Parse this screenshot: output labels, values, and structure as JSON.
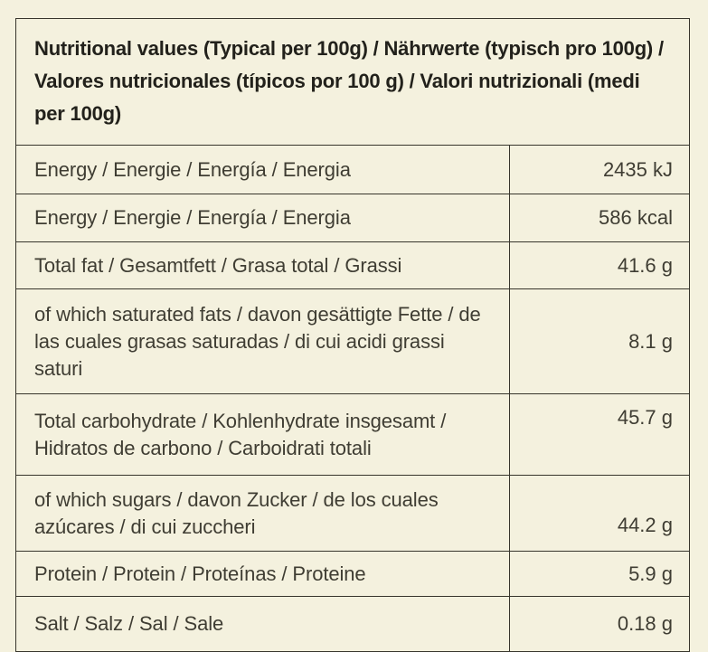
{
  "theme": {
    "background": "#f4f1de",
    "border": "#37352c",
    "text": "#3f3d33",
    "heading_text": "#22211b"
  },
  "table": {
    "header": "Nutritional values (Typical per 100g) / Nährwerte (typisch pro 100g) / Valores nutricionales (típicos por 100 g) / Valori nutrizionali (medi per 100g)",
    "rows": [
      {
        "label": "Energy / Energie / Energía / Energia",
        "value": "2435 kJ"
      },
      {
        "label": "Energy / Energie / Energía / Energia",
        "value": "586 kcal"
      },
      {
        "label": "Total fat / Gesamtfett / Grasa total / Grassi",
        "value": "41.6 g"
      },
      {
        "label": "of which saturated fats / davon gesättigte Fette / de las cuales grasas saturadas / di cui acidi grassi saturi",
        "value": "8.1 g"
      },
      {
        "label": "Total carbohydrate / Kohlenhydrate insgesamt / Hidratos de carbono / Carboidrati totali",
        "value": "45.7 g"
      },
      {
        "label": "of which sugars / davon Zucker / de los cuales azúcares / di cui zuccheri",
        "value": "44.2 g"
      },
      {
        "label": "Protein / Protein / Proteínas / Proteine",
        "value": "5.9 g"
      },
      {
        "label": "Salt / Salz / Sal / Sale",
        "value": "0.18 g"
      }
    ]
  }
}
